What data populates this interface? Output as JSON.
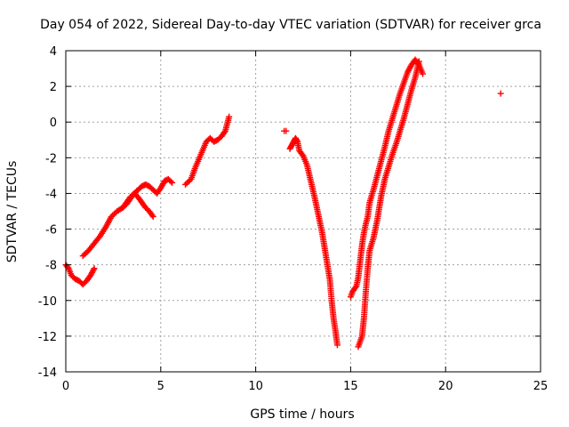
{
  "chart_data": {
    "type": "scatter",
    "title": "Day 054 of 2022, Sidereal Day-to-day VTEC variation (SDTVAR) for receiver grca",
    "xlabel": "GPS time / hours",
    "ylabel": "SDTVAR / TECUs",
    "xlim": [
      0,
      25
    ],
    "ylim": [
      -14,
      4
    ],
    "xticks": [
      0,
      5,
      10,
      15,
      20,
      25
    ],
    "yticks": [
      -14,
      -12,
      -10,
      -8,
      -6,
      -4,
      -2,
      0,
      2,
      4
    ],
    "grid": true,
    "marker": "plus",
    "color": "#ff0000",
    "segments": [
      [
        [
          0.0,
          -8.0
        ],
        [
          0.15,
          -8.2
        ],
        [
          0.3,
          -8.6
        ],
        [
          0.5,
          -8.8
        ],
        [
          0.7,
          -8.9
        ],
        [
          0.9,
          -9.1
        ],
        [
          1.1,
          -8.9
        ],
        [
          1.3,
          -8.6
        ],
        [
          1.5,
          -8.2
        ]
      ],
      [
        [
          0.9,
          -7.5
        ],
        [
          1.2,
          -7.2
        ],
        [
          1.5,
          -6.8
        ],
        [
          1.8,
          -6.4
        ],
        [
          2.1,
          -5.9
        ],
        [
          2.4,
          -5.3
        ],
        [
          2.7,
          -5.0
        ],
        [
          3.0,
          -4.8
        ],
        [
          3.2,
          -4.5
        ],
        [
          3.4,
          -4.2
        ],
        [
          3.6,
          -4.0
        ],
        [
          3.8,
          -3.8
        ],
        [
          4.0,
          -3.6
        ],
        [
          4.2,
          -3.5
        ],
        [
          4.4,
          -3.6
        ],
        [
          4.6,
          -3.8
        ],
        [
          4.8,
          -4.0
        ],
        [
          5.0,
          -3.7
        ],
        [
          5.2,
          -3.3
        ],
        [
          5.4,
          -3.2
        ],
        [
          5.6,
          -3.4
        ]
      ],
      [
        [
          3.0,
          -4.8
        ],
        [
          3.2,
          -4.6
        ],
        [
          3.4,
          -4.3
        ],
        [
          3.6,
          -4.0
        ],
        [
          3.8,
          -4.2
        ],
        [
          4.0,
          -4.5
        ],
        [
          4.2,
          -4.8
        ],
        [
          4.4,
          -5.0
        ],
        [
          4.6,
          -5.3
        ]
      ],
      [
        [
          6.3,
          -3.5
        ],
        [
          6.6,
          -3.2
        ],
        [
          6.8,
          -2.6
        ],
        [
          7.0,
          -2.1
        ],
        [
          7.2,
          -1.6
        ],
        [
          7.4,
          -1.1
        ],
        [
          7.6,
          -0.9
        ],
        [
          7.8,
          -1.1
        ],
        [
          8.0,
          -1.0
        ],
        [
          8.2,
          -0.8
        ],
        [
          8.4,
          -0.5
        ],
        [
          8.5,
          -0.1
        ],
        [
          8.6,
          0.3
        ]
      ],
      [
        [
          11.5,
          -0.5
        ],
        [
          11.6,
          -0.5
        ]
      ],
      [
        [
          11.8,
          -1.5
        ],
        [
          11.9,
          -1.3
        ],
        [
          12.0,
          -1.1
        ],
        [
          12.1,
          -0.9
        ],
        [
          12.2,
          -1.1
        ],
        [
          12.3,
          -1.6
        ],
        [
          12.5,
          -1.9
        ],
        [
          12.7,
          -2.4
        ],
        [
          12.9,
          -3.3
        ],
        [
          13.1,
          -4.2
        ],
        [
          13.3,
          -5.2
        ],
        [
          13.5,
          -6.2
        ],
        [
          13.7,
          -7.5
        ],
        [
          13.9,
          -8.8
        ],
        [
          14.0,
          -10.0
        ],
        [
          14.1,
          -11.0
        ],
        [
          14.2,
          -11.7
        ],
        [
          14.3,
          -12.5
        ]
      ],
      [
        [
          15.0,
          -9.8
        ],
        [
          15.1,
          -9.5
        ],
        [
          15.3,
          -9.2
        ],
        [
          15.4,
          -8.7
        ],
        [
          15.5,
          -7.8
        ],
        [
          15.6,
          -6.9
        ],
        [
          15.7,
          -6.2
        ],
        [
          15.8,
          -5.7
        ],
        [
          15.9,
          -5.3
        ],
        [
          16.0,
          -4.5
        ],
        [
          16.2,
          -3.8
        ],
        [
          16.4,
          -3.0
        ],
        [
          16.6,
          -2.2
        ],
        [
          16.8,
          -1.4
        ],
        [
          17.0,
          -0.5
        ],
        [
          17.2,
          0.2
        ],
        [
          17.4,
          0.9
        ],
        [
          17.6,
          1.6
        ],
        [
          17.8,
          2.2
        ],
        [
          18.0,
          2.8
        ],
        [
          18.2,
          3.2
        ],
        [
          18.4,
          3.5
        ],
        [
          18.6,
          3.2
        ],
        [
          18.8,
          2.7
        ]
      ],
      [
        [
          15.4,
          -12.6
        ],
        [
          15.5,
          -12.3
        ],
        [
          15.6,
          -12.0
        ],
        [
          15.7,
          -11.0
        ],
        [
          15.8,
          -9.5
        ],
        [
          15.9,
          -8.2
        ],
        [
          16.0,
          -7.2
        ],
        [
          16.2,
          -6.5
        ],
        [
          16.4,
          -5.5
        ],
        [
          16.6,
          -4.2
        ],
        [
          16.8,
          -3.2
        ],
        [
          17.0,
          -2.5
        ],
        [
          17.2,
          -1.8
        ],
        [
          17.4,
          -1.2
        ],
        [
          17.6,
          -0.5
        ],
        [
          17.8,
          0.2
        ],
        [
          18.0,
          1.0
        ],
        [
          18.2,
          1.8
        ],
        [
          18.4,
          2.5
        ],
        [
          18.6,
          3.4
        ]
      ],
      [
        [
          22.9,
          1.6
        ]
      ]
    ]
  }
}
